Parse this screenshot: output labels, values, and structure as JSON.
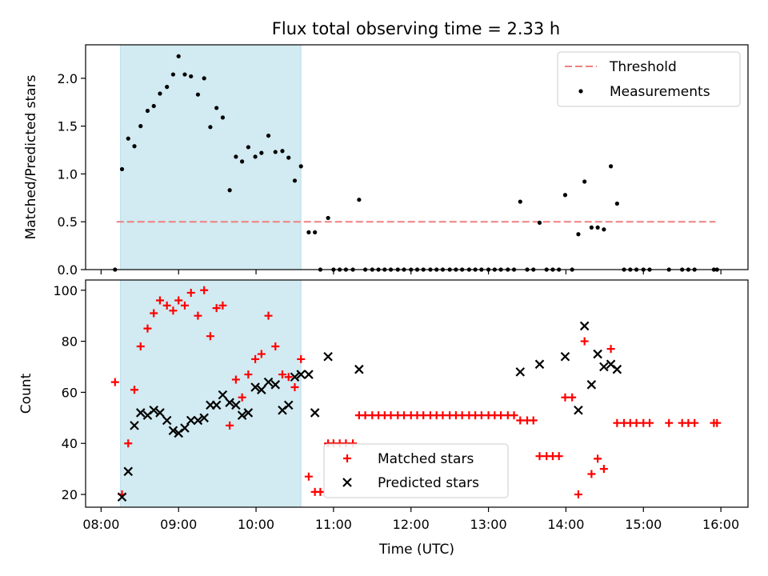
{
  "figure": {
    "title": "Flux total observing time = 2.33 h"
  },
  "chart_data": [
    {
      "type": "line",
      "panel": "top",
      "ylabel": "Matched/Predicted stars",
      "xlabel": "",
      "x_unit": "hours UTC",
      "xlim": [
        7.8,
        16.35
      ],
      "ylim": [
        0,
        2.35
      ],
      "yticks": [
        0.0,
        0.5,
        1.0,
        1.5,
        2.0
      ],
      "ytick_labels": [
        "0.0",
        "0.5",
        "1.0",
        "1.5",
        "2.0"
      ],
      "grid": false,
      "legend_loc": "upper right",
      "shaded_span": {
        "x0": 8.25,
        "x1": 10.58,
        "color": "#add8e6"
      },
      "series": [
        {
          "name": "Threshold",
          "kind": "hline",
          "y": 0.5,
          "x0": 8.2,
          "x1": 15.93,
          "color": "#f08080",
          "style": "dashed"
        },
        {
          "name": "Measurements",
          "kind": "scatter",
          "color": "#000000",
          "points": [
            [
              8.18,
              0.0
            ],
            [
              8.27,
              1.05
            ],
            [
              8.35,
              1.37
            ],
            [
              8.43,
              1.29
            ],
            [
              8.51,
              1.5
            ],
            [
              8.6,
              1.66
            ],
            [
              8.68,
              1.71
            ],
            [
              8.76,
              1.84
            ],
            [
              8.85,
              1.91
            ],
            [
              8.93,
              2.04
            ],
            [
              9.0,
              2.23
            ],
            [
              9.08,
              2.04
            ],
            [
              9.16,
              2.02
            ],
            [
              9.25,
              1.83
            ],
            [
              9.33,
              2.0
            ],
            [
              9.41,
              1.49
            ],
            [
              9.49,
              1.69
            ],
            [
              9.57,
              1.59
            ],
            [
              9.66,
              0.83
            ],
            [
              9.74,
              1.18
            ],
            [
              9.82,
              1.13
            ],
            [
              9.9,
              1.28
            ],
            [
              9.99,
              1.18
            ],
            [
              10.07,
              1.22
            ],
            [
              10.16,
              1.4
            ],
            [
              10.25,
              1.23
            ],
            [
              10.34,
              1.24
            ],
            [
              10.42,
              1.17
            ],
            [
              10.5,
              0.93
            ],
            [
              10.58,
              1.08
            ],
            [
              10.68,
              0.39
            ],
            [
              10.76,
              0.39
            ],
            [
              10.83,
              0.0
            ],
            [
              10.93,
              0.54
            ],
            [
              11.0,
              0.0
            ],
            [
              11.08,
              0.0
            ],
            [
              11.16,
              0.0
            ],
            [
              11.25,
              0.0
            ],
            [
              11.33,
              0.73
            ],
            [
              11.41,
              0.0
            ],
            [
              11.5,
              0.0
            ],
            [
              11.58,
              0.0
            ],
            [
              11.66,
              0.0
            ],
            [
              11.74,
              0.0
            ],
            [
              11.83,
              0.0
            ],
            [
              11.91,
              0.0
            ],
            [
              12.0,
              0.0
            ],
            [
              12.08,
              0.0
            ],
            [
              12.16,
              0.0
            ],
            [
              12.25,
              0.0
            ],
            [
              12.33,
              0.0
            ],
            [
              12.41,
              0.0
            ],
            [
              12.5,
              0.0
            ],
            [
              12.58,
              0.0
            ],
            [
              12.66,
              0.0
            ],
            [
              12.75,
              0.0
            ],
            [
              12.83,
              0.0
            ],
            [
              12.91,
              0.0
            ],
            [
              13.0,
              0.0
            ],
            [
              13.08,
              0.0
            ],
            [
              13.16,
              0.0
            ],
            [
              13.25,
              0.0
            ],
            [
              13.33,
              0.0
            ],
            [
              13.41,
              0.71
            ],
            [
              13.5,
              0.0
            ],
            [
              13.58,
              0.0
            ],
            [
              13.66,
              0.49
            ],
            [
              13.75,
              0.0
            ],
            [
              13.83,
              0.0
            ],
            [
              13.91,
              0.0
            ],
            [
              13.99,
              0.78
            ],
            [
              14.08,
              0.0
            ],
            [
              14.16,
              0.37
            ],
            [
              14.24,
              0.92
            ],
            [
              14.33,
              0.44
            ],
            [
              14.41,
              0.44
            ],
            [
              14.49,
              0.42
            ],
            [
              14.58,
              1.08
            ],
            [
              14.66,
              0.69
            ],
            [
              14.75,
              0.0
            ],
            [
              14.83,
              0.0
            ],
            [
              14.91,
              0.0
            ],
            [
              15.0,
              0.0
            ],
            [
              15.08,
              0.0
            ],
            [
              15.33,
              0.0
            ],
            [
              15.5,
              0.0
            ],
            [
              15.58,
              0.0
            ],
            [
              15.66,
              0.0
            ],
            [
              15.91,
              0.0
            ],
            [
              15.95,
              0.0
            ]
          ]
        }
      ]
    },
    {
      "type": "scatter",
      "panel": "bottom",
      "ylabel": "Count",
      "xlabel": "Time (UTC)",
      "x_unit": "hours UTC",
      "xlim": [
        7.8,
        16.35
      ],
      "ylim": [
        15,
        104
      ],
      "yticks": [
        20,
        40,
        60,
        80,
        100
      ],
      "ytick_labels": [
        "20",
        "40",
        "60",
        "80",
        "100"
      ],
      "xticks": [
        8,
        9,
        10,
        11,
        12,
        13,
        14,
        15,
        16
      ],
      "xtick_labels": [
        "08:00",
        "09:00",
        "10:00",
        "11:00",
        "12:00",
        "13:00",
        "14:00",
        "15:00",
        "16:00"
      ],
      "grid": false,
      "legend_loc": "lower center",
      "shaded_span": {
        "x0": 8.25,
        "x1": 10.58,
        "color": "#add8e6"
      },
      "series": [
        {
          "name": "Matched stars",
          "marker": "+",
          "color": "#ff0000",
          "points": [
            [
              8.18,
              64
            ],
            [
              8.27,
              20
            ],
            [
              8.35,
              40
            ],
            [
              8.43,
              61
            ],
            [
              8.51,
              78
            ],
            [
              8.6,
              85
            ],
            [
              8.68,
              91
            ],
            [
              8.76,
              96
            ],
            [
              8.85,
              94
            ],
            [
              8.93,
              92
            ],
            [
              9.0,
              96
            ],
            [
              9.08,
              94
            ],
            [
              9.16,
              99
            ],
            [
              9.25,
              90
            ],
            [
              9.33,
              100
            ],
            [
              9.41,
              82
            ],
            [
              9.49,
              93
            ],
            [
              9.57,
              94
            ],
            [
              9.66,
              47
            ],
            [
              9.74,
              65
            ],
            [
              9.82,
              58
            ],
            [
              9.9,
              67
            ],
            [
              9.99,
              73
            ],
            [
              10.07,
              75
            ],
            [
              10.16,
              90
            ],
            [
              10.25,
              78
            ],
            [
              10.34,
              67
            ],
            [
              10.42,
              66
            ],
            [
              10.5,
              62
            ],
            [
              10.58,
              73
            ],
            [
              10.68,
              27
            ],
            [
              10.76,
              21
            ],
            [
              10.83,
              21
            ],
            [
              10.93,
              40
            ],
            [
              11.0,
              40
            ],
            [
              11.08,
              40
            ],
            [
              11.16,
              40
            ],
            [
              11.25,
              40
            ],
            [
              11.33,
              51
            ],
            [
              11.41,
              51
            ],
            [
              11.5,
              51
            ],
            [
              11.58,
              51
            ],
            [
              11.66,
              51
            ],
            [
              11.74,
              51
            ],
            [
              11.83,
              51
            ],
            [
              11.91,
              51
            ],
            [
              12.0,
              51
            ],
            [
              12.08,
              51
            ],
            [
              12.16,
              51
            ],
            [
              12.25,
              51
            ],
            [
              12.33,
              51
            ],
            [
              12.41,
              51
            ],
            [
              12.5,
              51
            ],
            [
              12.58,
              51
            ],
            [
              12.66,
              51
            ],
            [
              12.75,
              51
            ],
            [
              12.83,
              51
            ],
            [
              12.91,
              51
            ],
            [
              13.0,
              51
            ],
            [
              13.08,
              51
            ],
            [
              13.16,
              51
            ],
            [
              13.25,
              51
            ],
            [
              13.33,
              51
            ],
            [
              13.41,
              49
            ],
            [
              13.5,
              49
            ],
            [
              13.58,
              49
            ],
            [
              13.66,
              35
            ],
            [
              13.75,
              35
            ],
            [
              13.83,
              35
            ],
            [
              13.91,
              35
            ],
            [
              13.99,
              58
            ],
            [
              14.08,
              58
            ],
            [
              14.16,
              20
            ],
            [
              14.24,
              80
            ],
            [
              14.33,
              28
            ],
            [
              14.41,
              34
            ],
            [
              14.49,
              30
            ],
            [
              14.58,
              77
            ],
            [
              14.66,
              48
            ],
            [
              14.75,
              48
            ],
            [
              14.83,
              48
            ],
            [
              14.91,
              48
            ],
            [
              15.0,
              48
            ],
            [
              15.08,
              48
            ],
            [
              15.33,
              48
            ],
            [
              15.5,
              48
            ],
            [
              15.58,
              48
            ],
            [
              15.66,
              48
            ],
            [
              15.91,
              48
            ],
            [
              15.95,
              48
            ]
          ]
        },
        {
          "name": "Predicted stars",
          "marker": "x",
          "color": "#000000",
          "points": [
            [
              8.27,
              19
            ],
            [
              8.35,
              29
            ],
            [
              8.43,
              47
            ],
            [
              8.51,
              52
            ],
            [
              8.6,
              51
            ],
            [
              8.68,
              53
            ],
            [
              8.76,
              52
            ],
            [
              8.85,
              49
            ],
            [
              8.93,
              45
            ],
            [
              9.0,
              44
            ],
            [
              9.08,
              46
            ],
            [
              9.16,
              49
            ],
            [
              9.25,
              49
            ],
            [
              9.33,
              50
            ],
            [
              9.41,
              55
            ],
            [
              9.49,
              55
            ],
            [
              9.57,
              59
            ],
            [
              9.66,
              56
            ],
            [
              9.74,
              55
            ],
            [
              9.82,
              51
            ],
            [
              9.9,
              52
            ],
            [
              9.99,
              62
            ],
            [
              10.07,
              61
            ],
            [
              10.16,
              64
            ],
            [
              10.25,
              63
            ],
            [
              10.34,
              53
            ],
            [
              10.42,
              55
            ],
            [
              10.5,
              66
            ],
            [
              10.58,
              67
            ],
            [
              10.68,
              67
            ],
            [
              10.76,
              52
            ],
            [
              10.93,
              74
            ],
            [
              11.33,
              69
            ],
            [
              13.41,
              68
            ],
            [
              13.66,
              71
            ],
            [
              13.99,
              74
            ],
            [
              14.16,
              53
            ],
            [
              14.24,
              86
            ],
            [
              14.33,
              63
            ],
            [
              14.41,
              75
            ],
            [
              14.49,
              70
            ],
            [
              14.58,
              71
            ],
            [
              14.66,
              69
            ]
          ]
        }
      ]
    }
  ]
}
